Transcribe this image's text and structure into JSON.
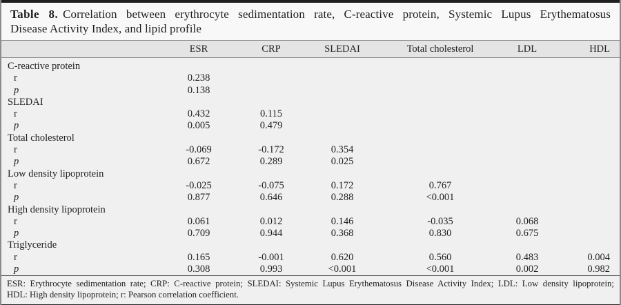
{
  "title": {
    "label": "Table 8.",
    "line1": "Correlation between erythrocyte sedimentation rate, C-reactive protein, Systemic Lupus Erythematosus",
    "line2": "Disease Activity Index, and lipid profile"
  },
  "columns": [
    "",
    "ESR",
    "CRP",
    "SLEDAI",
    "Total cholesterol",
    "LDL",
    "HDL"
  ],
  "stat_labels": {
    "r": "r",
    "p": "p"
  },
  "sections": [
    {
      "label": "C-reactive protein",
      "r": [
        "0.238"
      ],
      "p": [
        "0.138"
      ]
    },
    {
      "label": "SLEDAI",
      "r": [
        "0.432",
        "0.115"
      ],
      "p": [
        "0.005",
        "0.479"
      ]
    },
    {
      "label": "Total cholesterol",
      "r": [
        "-0.069",
        "-0.172",
        "0.354"
      ],
      "p": [
        "0.672",
        "0.289",
        "0.025"
      ]
    },
    {
      "label": "Low density lipoprotein",
      "r": [
        "-0.025",
        "-0.075",
        "0.172",
        "0.767"
      ],
      "p": [
        "0.877",
        "0.646",
        "0.288",
        "<0.001"
      ]
    },
    {
      "label": "High density lipoprotein",
      "r": [
        "0.061",
        "0.012",
        "0.146",
        "-0.035",
        "0.068"
      ],
      "p": [
        "0.709",
        "0.944",
        "0.368",
        "0.830",
        "0.675"
      ]
    },
    {
      "label": "Triglyceride",
      "r": [
        "0.165",
        "-0.001",
        "0.620",
        "0.560",
        "0.483",
        "0.004"
      ],
      "p": [
        "0.308",
        "0.993",
        "<0.001",
        "<0.001",
        "0.002",
        "0.982"
      ]
    }
  ],
  "footnote": {
    "line1": "ESR: Erythrocyte sedimentation rate; CRP: C-reactive protein; SLEDAI: Systemic Lupus Erythematosus Disease Activity Index; LDL: Low density lipoprotein;",
    "line2": "HDL: High density lipoprotein; r: Pearson correlation coefficient."
  },
  "colors": {
    "rule_black": "#1f1f1f",
    "header_bg": "#e4e4e4",
    "body_bg": "#f0f0f0",
    "title_bg": "#f8f8f8",
    "line_gray": "#8c8c8c",
    "text": "#1f1f1f"
  }
}
